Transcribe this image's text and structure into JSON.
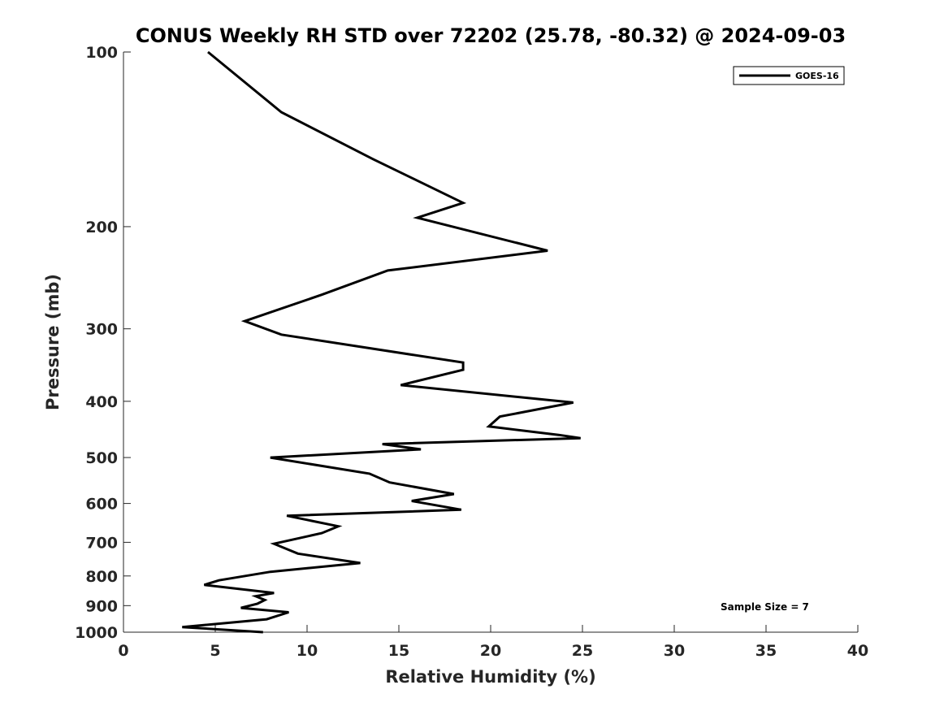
{
  "chart_data": {
    "type": "line",
    "title": "CONUS Weekly RH STD over 72202 (25.78, -80.32) @ 2024-09-03",
    "xlabel": "Relative Humidity (%)",
    "ylabel": "Pressure (mb)",
    "xlim": [
      0,
      40
    ],
    "ylim": [
      100,
      1000
    ],
    "y_scale": "log",
    "y_reversed": true,
    "x_ticks": [
      0,
      5,
      10,
      15,
      20,
      25,
      30,
      35,
      40
    ],
    "y_ticks": [
      100,
      200,
      300,
      400,
      500,
      600,
      700,
      800,
      900,
      1000
    ],
    "grid": false,
    "legend_position": "top-right",
    "annotation": "Sample Size = 7",
    "series": [
      {
        "name": "GOES-16",
        "color": "#000000",
        "x": [
          4.6,
          8.6,
          13.6,
          18.5,
          16.0,
          23.1,
          14.4,
          10.8,
          6.6,
          8.6,
          18.5,
          18.5,
          15.1,
          24.5,
          20.5,
          19.9,
          23.7,
          24.9,
          14.1,
          16.2,
          8.0,
          13.4,
          14.5,
          18.0,
          15.7,
          18.4,
          8.9,
          11.7,
          10.8,
          8.2,
          9.5,
          12.9,
          8.0,
          5.2,
          4.4,
          8.2,
          7.2,
          7.7,
          7.3,
          6.4,
          9.0,
          7.8,
          3.2,
          7.6
        ],
        "y": [
          100,
          127,
          153,
          182,
          193,
          220,
          238,
          262,
          291,
          307,
          343,
          353,
          375,
          402,
          425,
          442,
          457,
          463,
          474,
          484,
          500,
          533,
          552,
          578,
          594,
          615,
          630,
          657,
          675,
          704,
          732,
          760,
          787,
          814,
          829,
          856,
          867,
          880,
          893,
          908,
          924,
          950,
          980,
          1000
        ]
      }
    ]
  }
}
